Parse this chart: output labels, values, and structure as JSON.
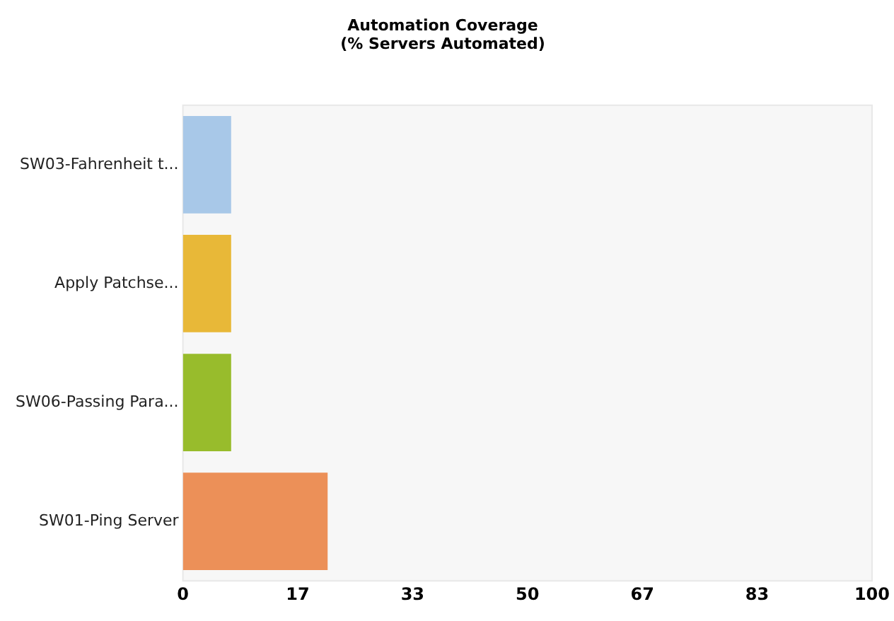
{
  "chart_data": {
    "type": "bar",
    "orientation": "horizontal",
    "title": [
      "Automation Coverage",
      "(% Servers Automated)"
    ],
    "categories": [
      "SW03-Fahrenheit t...",
      "Apply Patchse...",
      "SW06-Passing Para...",
      "SW01-Ping Server"
    ],
    "values": [
      7,
      7,
      7,
      21
    ],
    "colors": [
      "#a8c8e8",
      "#e8b838",
      "#98bc2c",
      "#ec9058"
    ],
    "xlim": [
      0,
      100
    ],
    "xticks": [
      0,
      {
        "value": 16.67,
        "label": "17"
      },
      {
        "value": 33.33,
        "label": "33"
      },
      50,
      {
        "value": 66.67,
        "label": "67"
      },
      {
        "value": 83.33,
        "label": "83"
      },
      100
    ],
    "grid": false,
    "legend": false
  }
}
